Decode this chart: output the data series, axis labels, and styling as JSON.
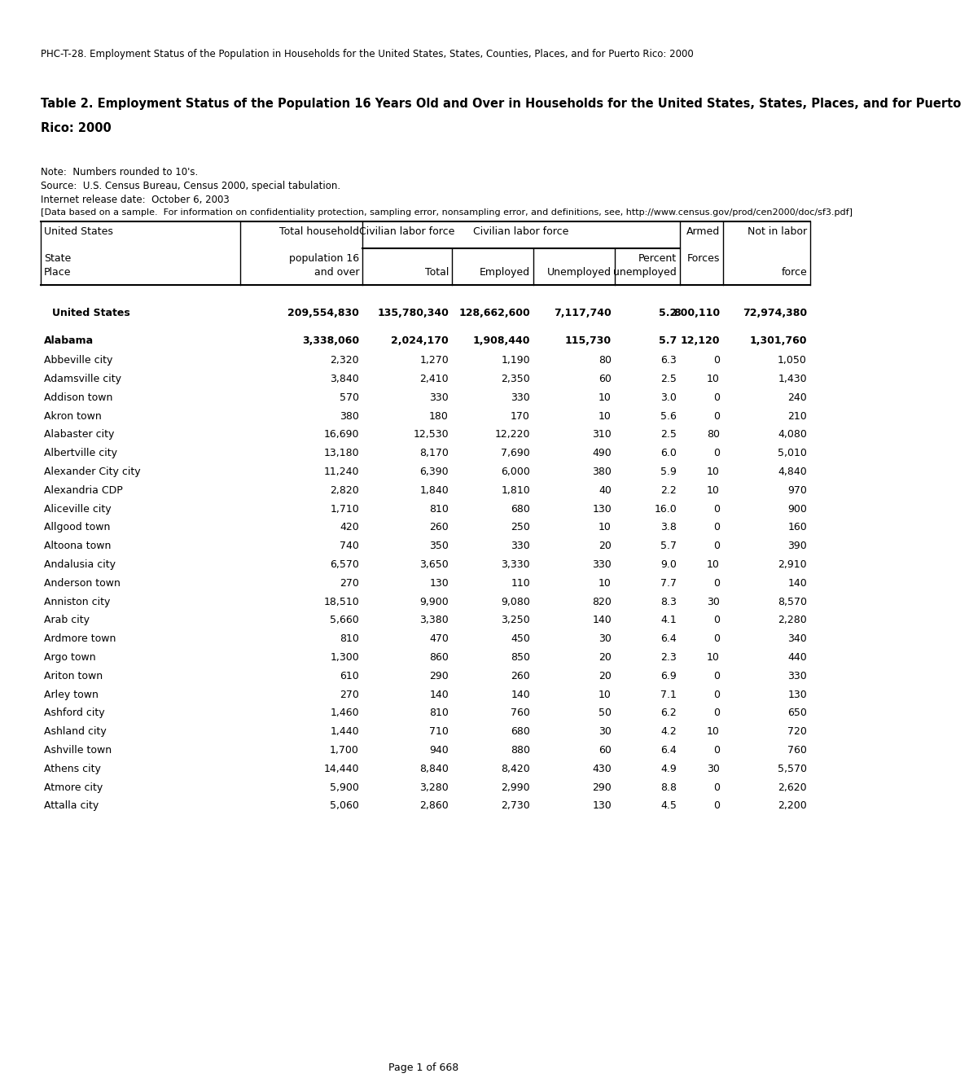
{
  "page_title": "PHC-T-28. Employment Status of the Population in Households for the United States, States, Counties, Places, and for Puerto Rico: 2000",
  "table_title_line1": "Table 2. Employment Status of the Population 16 Years Old and Over in Households for the United States, States, Places, and for Puerto",
  "table_title_line2": "Rico: 2000",
  "note_line1": "Note:  Numbers rounded to 10's.",
  "note_line2": "Source:  U.S. Census Bureau, Census 2000, special tabulation.",
  "note_line3": "Internet release date:  October 6, 2003",
  "note_line4": "[Data based on a sample.  For information on confidentiality protection, sampling error, nonsampling error, and definitions, see, http://www.census.gov/prod/cen2000/doc/sf3.pdf]",
  "us_row": [
    "United States",
    "209,554,830",
    "135,780,340",
    "128,662,600",
    "7,117,740",
    "5.2",
    "800,110",
    "72,974,380"
  ],
  "state_row": [
    "Alabama",
    "3,338,060",
    "2,024,170",
    "1,908,440",
    "115,730",
    "5.7",
    "12,120",
    "1,301,760"
  ],
  "data_rows": [
    [
      "Abbeville city",
      "2,320",
      "1,270",
      "1,190",
      "80",
      "6.3",
      "0",
      "1,050"
    ],
    [
      "Adamsville city",
      "3,840",
      "2,410",
      "2,350",
      "60",
      "2.5",
      "10",
      "1,430"
    ],
    [
      "Addison town",
      "570",
      "330",
      "330",
      "10",
      "3.0",
      "0",
      "240"
    ],
    [
      "Akron town",
      "380",
      "180",
      "170",
      "10",
      "5.6",
      "0",
      "210"
    ],
    [
      "Alabaster city",
      "16,690",
      "12,530",
      "12,220",
      "310",
      "2.5",
      "80",
      "4,080"
    ],
    [
      "Albertville city",
      "13,180",
      "8,170",
      "7,690",
      "490",
      "6.0",
      "0",
      "5,010"
    ],
    [
      "Alexander City city",
      "11,240",
      "6,390",
      "6,000",
      "380",
      "5.9",
      "10",
      "4,840"
    ],
    [
      "Alexandria CDP",
      "2,820",
      "1,840",
      "1,810",
      "40",
      "2.2",
      "10",
      "970"
    ],
    [
      "Aliceville city",
      "1,710",
      "810",
      "680",
      "130",
      "16.0",
      "0",
      "900"
    ],
    [
      "Allgood town",
      "420",
      "260",
      "250",
      "10",
      "3.8",
      "0",
      "160"
    ],
    [
      "Altoona town",
      "740",
      "350",
      "330",
      "20",
      "5.7",
      "0",
      "390"
    ],
    [
      "Andalusia city",
      "6,570",
      "3,650",
      "3,330",
      "330",
      "9.0",
      "10",
      "2,910"
    ],
    [
      "Anderson town",
      "270",
      "130",
      "110",
      "10",
      "7.7",
      "0",
      "140"
    ],
    [
      "Anniston city",
      "18,510",
      "9,900",
      "9,080",
      "820",
      "8.3",
      "30",
      "8,570"
    ],
    [
      "Arab city",
      "5,660",
      "3,380",
      "3,250",
      "140",
      "4.1",
      "0",
      "2,280"
    ],
    [
      "Ardmore town",
      "810",
      "470",
      "450",
      "30",
      "6.4",
      "0",
      "340"
    ],
    [
      "Argo town",
      "1,300",
      "860",
      "850",
      "20",
      "2.3",
      "10",
      "440"
    ],
    [
      "Ariton town",
      "610",
      "290",
      "260",
      "20",
      "6.9",
      "0",
      "330"
    ],
    [
      "Arley town",
      "270",
      "140",
      "140",
      "10",
      "7.1",
      "0",
      "130"
    ],
    [
      "Ashford city",
      "1,460",
      "810",
      "760",
      "50",
      "6.2",
      "0",
      "650"
    ],
    [
      "Ashland city",
      "1,440",
      "710",
      "680",
      "30",
      "4.2",
      "10",
      "720"
    ],
    [
      "Ashville town",
      "1,700",
      "940",
      "880",
      "60",
      "6.4",
      "0",
      "760"
    ],
    [
      "Athens city",
      "14,440",
      "8,840",
      "8,420",
      "430",
      "4.9",
      "30",
      "5,570"
    ],
    [
      "Atmore city",
      "5,900",
      "3,280",
      "2,990",
      "290",
      "8.8",
      "0",
      "2,620"
    ],
    [
      "Attalla city",
      "5,060",
      "2,860",
      "2,730",
      "130",
      "4.5",
      "0",
      "2,200"
    ]
  ],
  "footer": "Page 1 of 668",
  "bg_color": "#ffffff",
  "font_size_page_title": 8.5,
  "font_size_table_title": 10.5,
  "font_size_notes": 8.5,
  "font_size_header": 9.0,
  "font_size_data": 9.0
}
